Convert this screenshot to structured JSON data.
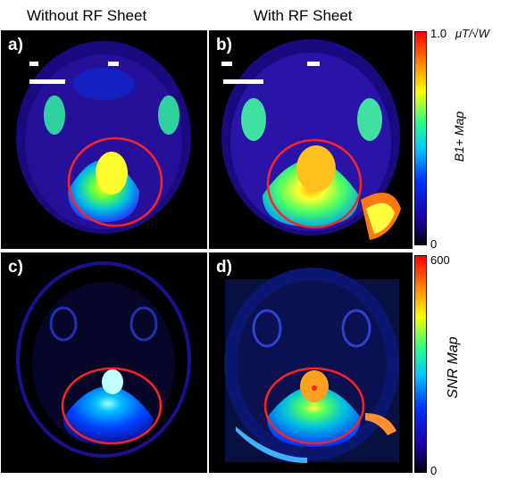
{
  "header": {
    "col1": "Without RF Sheet",
    "col2": "With RF Sheet"
  },
  "panels": {
    "a": "a)",
    "b": "b)",
    "c": "c)",
    "d": "d)"
  },
  "colorbar_top": {
    "max_label": "1.0",
    "unit": "μT/√W",
    "min_label": "0",
    "title": "B1+ Map"
  },
  "colorbar_bottom": {
    "max_label": "600",
    "min_label": "0",
    "title": "SNR Map"
  },
  "colors": {
    "roi_circle": "#ff2222",
    "scale": [
      "#000010",
      "#1a00a0",
      "#0030ff",
      "#00c8ff",
      "#30ff80",
      "#ffff00",
      "#ff8000",
      "#ff0000"
    ]
  }
}
